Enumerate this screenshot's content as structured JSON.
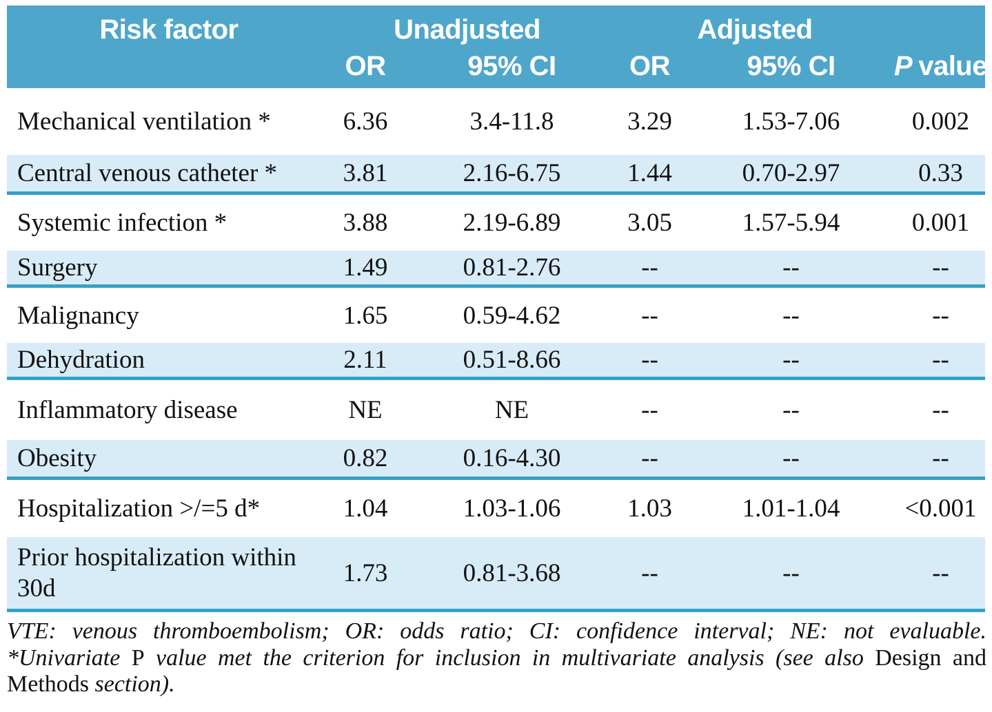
{
  "colors": {
    "header_bg": "#4FA6CB",
    "shaded_bg": "#D8ECF8",
    "separator": "#35A1C6",
    "header_text": "#FFFFFF",
    "body_text": "#111111"
  },
  "table": {
    "header": {
      "col_risk_factor": "Risk factor",
      "group_unadjusted": "Unadjusted",
      "group_adjusted": "Adjusted",
      "sub_or_unadjusted": "OR",
      "sub_ci_unadjusted": "95% CI",
      "sub_or_adjusted": "OR",
      "sub_ci_adjusted": "95% CI",
      "p_italic": "P",
      "p_rest": "value"
    },
    "rows": [
      {
        "label": "Mechanical ventilation *",
        "u_or": "6.36",
        "u_ci": "3.4-11.8",
        "a_or": "3.29",
        "a_ci": "1.53-7.06",
        "p": "0.002"
      },
      {
        "label": "Central venous catheter *",
        "u_or": "3.81",
        "u_ci": "2.16-6.75",
        "a_or": "1.44",
        "a_ci": "0.70-2.97",
        "p": "0.33"
      },
      {
        "label": "Systemic infection *",
        "u_or": "3.88",
        "u_ci": "2.19-6.89",
        "a_or": "3.05",
        "a_ci": "1.57-5.94",
        "p": "0.001"
      },
      {
        "label": "Surgery",
        "u_or": "1.49",
        "u_ci": "0.81-2.76",
        "a_or": "--",
        "a_ci": "--",
        "p": "--"
      },
      {
        "label": "Malignancy",
        "u_or": "1.65",
        "u_ci": "0.59-4.62",
        "a_or": "--",
        "a_ci": "--",
        "p": "--"
      },
      {
        "label": "Dehydration",
        "u_or": "2.11",
        "u_ci": "0.51-8.66",
        "a_or": "--",
        "a_ci": "--",
        "p": "--"
      },
      {
        "label": "Inflammatory disease",
        "u_or": "NE",
        "u_ci": "NE",
        "a_or": "--",
        "a_ci": "--",
        "p": "--"
      },
      {
        "label": "Obesity",
        "u_or": "0.82",
        "u_ci": "0.16-4.30",
        "a_or": "--",
        "a_ci": "--",
        "p": "--"
      },
      {
        "label": "Hospitalization >/=5 d*",
        "u_or": "1.04",
        "u_ci": "1.03-1.06",
        "a_or": "1.03",
        "a_ci": "1.01-1.04",
        "p": "<0.001"
      },
      {
        "label": "Prior hospitalization within 30d",
        "u_or": "1.73",
        "u_ci": "0.81-3.68",
        "a_or": "--",
        "a_ci": "--",
        "p": "--"
      }
    ]
  },
  "footnote": {
    "abbreviations": "VTE: venous thromboembolism; OR: odds ratio; CI: confidence interval; NE: not evaluable.",
    "note_start": "*Univariate ",
    "note_p": "P",
    "note_mid": " value met the criterion for inclusion in multivariate analysis (see also ",
    "note_section_name": "Design and Methods ",
    "note_end": "section)."
  }
}
